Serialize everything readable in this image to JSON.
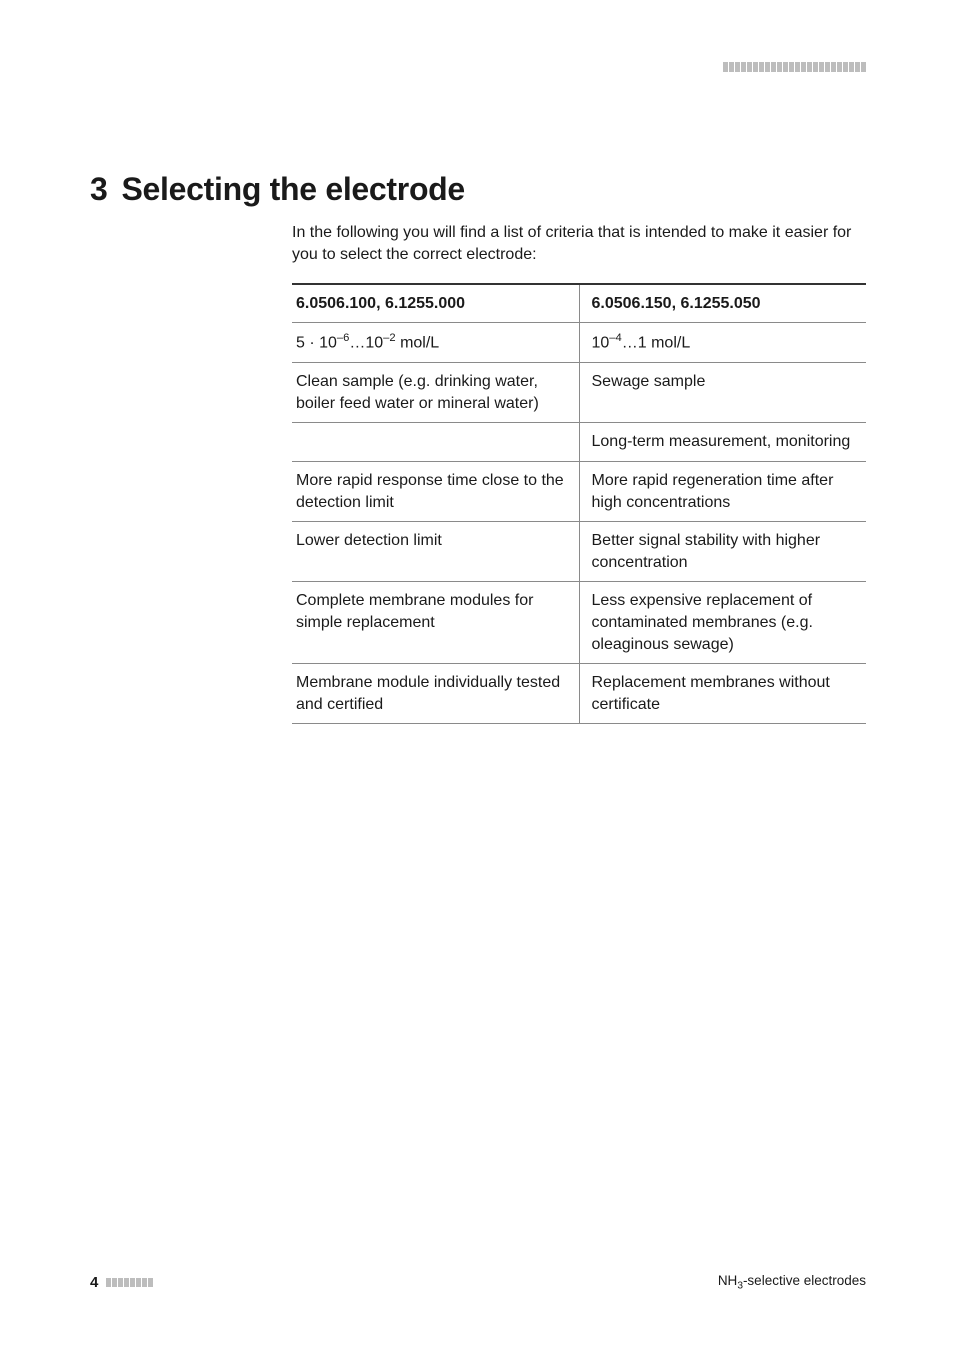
{
  "chapter": {
    "number": "3",
    "title": "Selecting the electrode"
  },
  "intro": "In the following you will find a list of criteria that is intended to make it easier for you to select the correct electrode:",
  "table": {
    "header_left": "6.0506.100, 6.1255.000",
    "header_right": "6.0506.150, 6.1255.050",
    "rows": [
      {
        "left_html": "5 · 10<sup>–6</sup>…10<sup>–2</sup> mol/L",
        "right_html": "10<sup>–4</sup>…1 mol/L"
      },
      {
        "left_html": "Clean sample (e.g. drinking water, boiler feed water or mineral water)",
        "right_html": "Sewage sample"
      },
      {
        "left_html": "",
        "right_html": "Long-term measurement, monitoring"
      },
      {
        "left_html": "More rapid response time close to the detection limit",
        "right_html": "More rapid regeneration time after high concentrations"
      },
      {
        "left_html": "Lower detection limit",
        "right_html": "Better signal stability with higher concentration"
      },
      {
        "left_html": "Complete membrane modules for simple replacement",
        "right_html": "Less expensive replacement of contaminated membranes (e.g. oleaginous sewage)"
      },
      {
        "left_html": "Membrane module individually tested and certified",
        "right_html": "Replacement membranes without certificate"
      }
    ],
    "border_color": "#8a8a8a",
    "header_border_top": "#333333"
  },
  "footer": {
    "page_number": "4",
    "doc_title_html": "NH<sub>3</sub>-selective electrodes"
  },
  "decor": {
    "header_bar_count": 24,
    "footer_bar_count": 8,
    "bar_color": "#bdbdbd"
  }
}
